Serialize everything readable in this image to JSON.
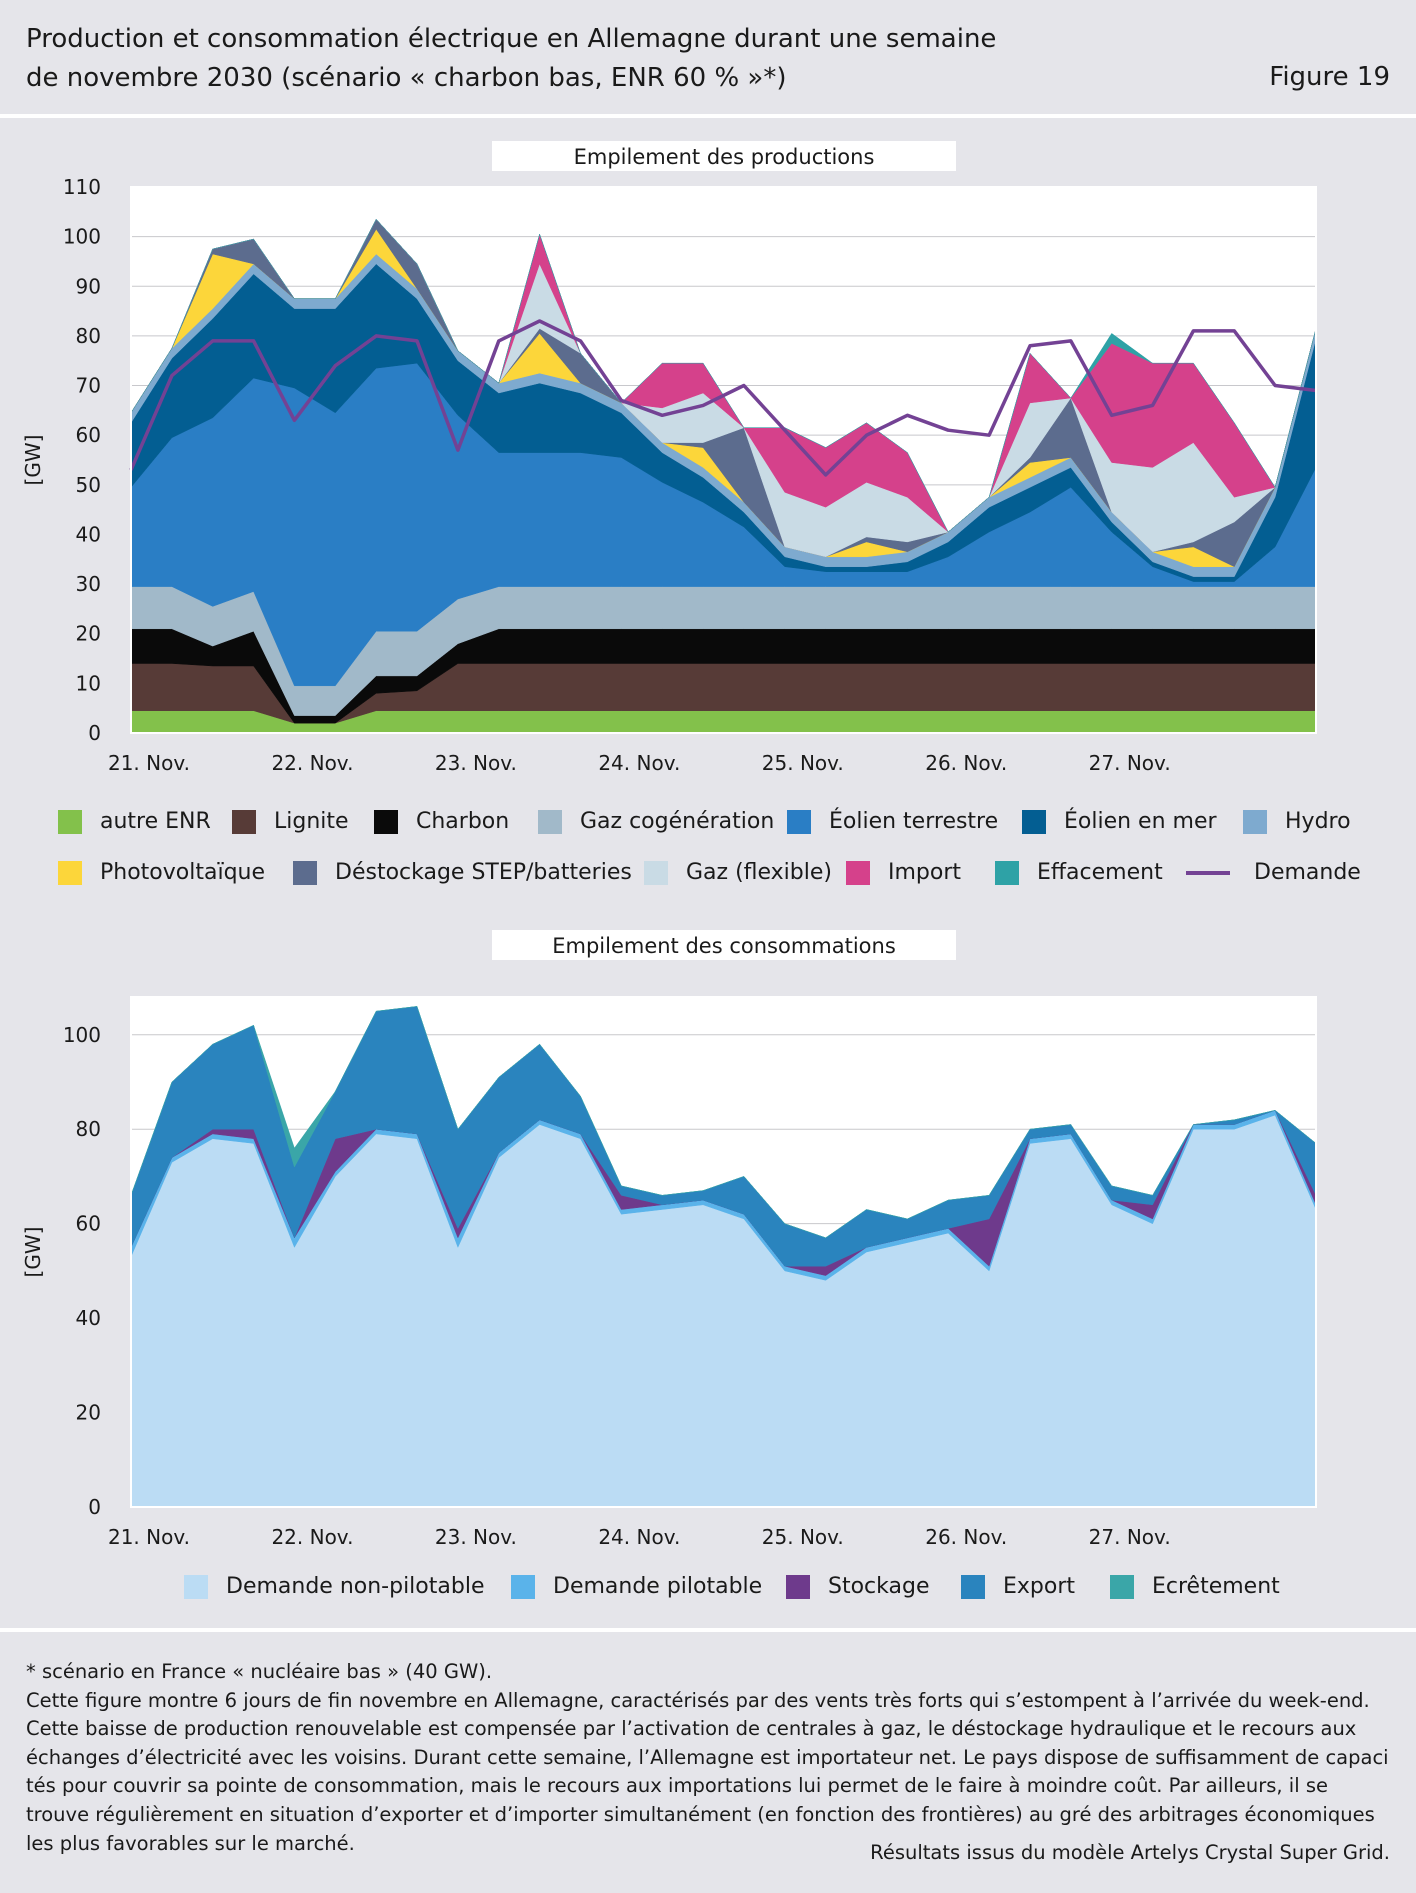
{
  "header": {
    "title_line1": "Production et consommation électrique en Allemagne durant une semaine",
    "title_line2": "de novembre 2030 (scénario « charbon bas, ENR 60 % »*)",
    "figure_label": "Figure 19"
  },
  "footer": {
    "note": "* scénario en France « nucléaire bas » (40 GW).",
    "text": "Cette figure montre 6 jours de fin novembre en Allemagne, caractérisés par des vents très forts qui s’estompent à l’arrivée du week-end. Cette baisse de production renouvelable est compensée par l’activation de centrales à gaz, le déstockage hydraulique et le recours aux échanges d’électricité avec les voisins. Durant cette semaine, l’Allemagne est importateur net. Le pays dispose de suffisamment de capaci tés pour couvrir sa pointe de consommation, mais le recours aux importations lui permet de le faire à moindre coût. Par ailleurs, il se trouve régulièrement en situation d’exporter et d’importer simultanément (en fonction des frontières) au gré des arbitrages économiques les plus favorables sur le marché.",
    "source": "Résultats issus du modèle Artelys Crystal Super Grid."
  },
  "chart_data": [
    {
      "type": "area",
      "title": "Empilement des productions",
      "ylabel": "[GW]",
      "ylim": [
        0,
        110
      ],
      "yticks": [
        0,
        10,
        20,
        30,
        40,
        50,
        60,
        70,
        80,
        90,
        100,
        110
      ],
      "grid": true,
      "legend_position": "bottom",
      "x_tick_labels": [
        "21. Nov.",
        "22. Nov.",
        "23. Nov.",
        "24. Nov.",
        "25. Nov.",
        "26. Nov.",
        "27. Nov."
      ],
      "x": [
        0,
        0.25,
        0.5,
        0.75,
        1,
        1.25,
        1.5,
        1.75,
        2,
        2.25,
        2.5,
        2.75,
        3,
        3.25,
        3.5,
        3.75,
        4,
        4.25,
        4.5,
        4.75,
        5,
        5.25,
        5.5,
        5.75,
        6,
        6.25,
        6.5,
        6.75,
        7,
        7.25
      ],
      "series": [
        {
          "name": "autre ENR",
          "color": "#83c14b",
          "values": [
            4.5,
            4.5,
            4.5,
            4.5,
            2,
            2,
            4.5,
            4.5,
            4.5,
            4.5,
            4.5,
            4.5,
            4.5,
            4.5,
            4.5,
            4.5,
            4.5,
            4.5,
            4.5,
            4.5,
            4.5,
            4.5,
            4.5,
            4.5,
            4.5,
            4.5,
            4.5,
            4.5,
            4.5,
            4.5
          ]
        },
        {
          "name": "Lignite",
          "color": "#573b37",
          "values": [
            9.5,
            9.5,
            9,
            9,
            0,
            0,
            3.5,
            4,
            9.5,
            9.5,
            9.5,
            9.5,
            9.5,
            9.5,
            9.5,
            9.5,
            9.5,
            9.5,
            9.5,
            9.5,
            9.5,
            9.5,
            9.5,
            9.5,
            9.5,
            9.5,
            9.5,
            9.5,
            9.5,
            9.5
          ]
        },
        {
          "name": "Charbon",
          "color": "#0a0a0a",
          "values": [
            7,
            7,
            4,
            7,
            1.5,
            1.5,
            3.5,
            3,
            4,
            7,
            7,
            7,
            7,
            7,
            7,
            7,
            7,
            7,
            7,
            7,
            7,
            7,
            7,
            7,
            7,
            7,
            7,
            7,
            7,
            7
          ]
        },
        {
          "name": "Gaz cogénération",
          "color": "#a1b9c9",
          "values": [
            8.5,
            8.5,
            8,
            8,
            6,
            6,
            9,
            9,
            9,
            8.5,
            8.5,
            8.5,
            8.5,
            8.5,
            8.5,
            8.5,
            8.5,
            8.5,
            8.5,
            8.5,
            8.5,
            8.5,
            8.5,
            8.5,
            8.5,
            8.5,
            8.5,
            8.5,
            8.5,
            8.5
          ]
        },
        {
          "name": "Éolien terrestre",
          "color": "#2a7ec5",
          "values": [
            20,
            30,
            38,
            43,
            60,
            55,
            53,
            54,
            37,
            27,
            27,
            27,
            26,
            21,
            17,
            12,
            4,
            3,
            3,
            3,
            6,
            11,
            15,
            20,
            11,
            4,
            1,
            1,
            8,
            24
          ]
        },
        {
          "name": "Éolien en mer",
          "color": "#035e92",
          "values": [
            13,
            16,
            20,
            21,
            16,
            21,
            21,
            13,
            11,
            12,
            14,
            12,
            9,
            6,
            5,
            3,
            2,
            1,
            1,
            2,
            3,
            5,
            5,
            4,
            2,
            1,
            1,
            1,
            10,
            26
          ]
        },
        {
          "name": "Hydro",
          "color": "#7eaacf",
          "values": [
            2,
            2,
            2,
            2,
            2,
            2,
            2,
            2,
            2,
            2,
            2,
            2,
            2,
            2,
            2,
            2,
            2,
            2,
            2,
            2,
            2,
            2,
            2,
            2,
            2,
            2,
            2,
            2,
            2,
            2
          ]
        },
        {
          "name": "Photovoltaïque",
          "color": "#fcd63a",
          "values": [
            0,
            0,
            11,
            0,
            0,
            0,
            5,
            0,
            0,
            0,
            8,
            0,
            0,
            0,
            4,
            0,
            0,
            0,
            3,
            0,
            0,
            0,
            3,
            0,
            0,
            0,
            4,
            0,
            0,
            0
          ]
        },
        {
          "name": "Déstockage STEP/batteries",
          "color": "#5c6c8e",
          "values": [
            0,
            0,
            1,
            5,
            0,
            0,
            2,
            5,
            0,
            0,
            1,
            6,
            0,
            0,
            1,
            15,
            0,
            0,
            1,
            2,
            0,
            0,
            1,
            12,
            0,
            0,
            1,
            9,
            0,
            0
          ]
        },
        {
          "name": "Gaz (flexible)",
          "color": "#c9dbe5",
          "values": [
            0,
            0,
            0,
            0,
            0,
            0,
            0,
            0,
            0,
            0,
            13,
            0,
            0,
            7,
            10,
            0,
            11,
            10,
            11,
            9,
            0,
            0,
            11,
            0,
            10,
            17,
            20,
            5,
            0,
            0
          ]
        },
        {
          "name": "Import",
          "color": "#d5418b",
          "values": [
            0,
            0,
            0,
            0,
            0,
            0,
            0,
            0,
            0,
            0,
            6,
            0,
            0,
            9,
            6,
            0,
            13,
            12,
            12,
            9,
            0,
            0,
            10,
            0,
            24,
            21,
            16,
            15,
            0,
            0
          ]
        },
        {
          "name": "Effacement",
          "color": "#2ea2a6",
          "values": [
            0,
            0,
            0,
            0,
            0,
            0,
            0,
            0,
            0,
            0,
            0,
            0,
            0,
            0,
            0,
            0,
            0,
            0,
            0,
            0,
            0,
            0,
            0,
            0,
            2,
            0,
            0,
            0,
            0,
            0
          ]
        }
      ],
      "demand_series": {
        "name": "Demande",
        "color": "#734294",
        "values": [
          53,
          72,
          79,
          79,
          63,
          74,
          80,
          79,
          57,
          79,
          83,
          79,
          67,
          64,
          66,
          70,
          61,
          52,
          60,
          64,
          61,
          60,
          78,
          79,
          64,
          66,
          81,
          81,
          70,
          69
        ]
      }
    },
    {
      "type": "area",
      "title": "Empilement des consommations",
      "ylabel": "[GW]",
      "ylim": [
        0,
        108
      ],
      "yticks": [
        0,
        20,
        40,
        60,
        80,
        100
      ],
      "grid": true,
      "legend_position": "bottom",
      "x_tick_labels": [
        "21. Nov.",
        "22. Nov.",
        "23. Nov.",
        "24. Nov.",
        "25. Nov.",
        "26. Nov.",
        "27. Nov."
      ],
      "x": [
        0,
        0.25,
        0.5,
        0.75,
        1,
        1.25,
        1.5,
        1.75,
        2,
        2.25,
        2.5,
        2.75,
        3,
        3.25,
        3.5,
        3.75,
        4,
        4.25,
        4.5,
        4.75,
        5,
        5.25,
        5.5,
        5.75,
        6,
        6.25,
        6.5,
        6.75,
        7,
        7.25
      ],
      "series": [
        {
          "name": "Demande non-pilotable",
          "color": "#bbdcf4",
          "values": [
            53,
            73,
            78,
            77,
            55,
            70,
            79,
            78,
            55,
            74,
            81,
            78,
            62,
            63,
            64,
            61,
            50,
            48,
            54,
            56,
            58,
            50,
            77,
            78,
            64,
            60,
            80,
            80,
            83,
            63
          ]
        },
        {
          "name": "Demande pilotable",
          "color": "#5ab3ea",
          "values": [
            2,
            1,
            1,
            1,
            2,
            1,
            1,
            1,
            2,
            1,
            1,
            1,
            1,
            1,
            1,
            1,
            1,
            1,
            1,
            1,
            1,
            1,
            1,
            1,
            1,
            1,
            1,
            1,
            1,
            1
          ]
        },
        {
          "name": "Stockage",
          "color": "#6e3a8c",
          "values": [
            0,
            0,
            1,
            2,
            0,
            7,
            0,
            0,
            2,
            0,
            0,
            0,
            3,
            0,
            0,
            0,
            0,
            2,
            0,
            0,
            0,
            10,
            0,
            0,
            0,
            3,
            0,
            0,
            0,
            2
          ]
        },
        {
          "name": "Export",
          "color": "#2a84be",
          "values": [
            11,
            16,
            18,
            22,
            15,
            10,
            25,
            27,
            21,
            16,
            16,
            8,
            2,
            2,
            2,
            8,
            9,
            6,
            8,
            4,
            6,
            5,
            2,
            2,
            3,
            2,
            0,
            1,
            0,
            11
          ]
        },
        {
          "name": "Ecrêtement",
          "color": "#3aa6a8",
          "values": [
            0,
            0,
            0,
            0,
            4,
            0,
            0,
            0,
            0,
            0,
            0,
            0,
            0,
            0,
            0,
            0,
            0,
            0,
            0,
            0,
            0,
            0,
            0,
            0,
            0,
            0,
            0,
            0,
            0,
            0
          ]
        }
      ]
    }
  ]
}
